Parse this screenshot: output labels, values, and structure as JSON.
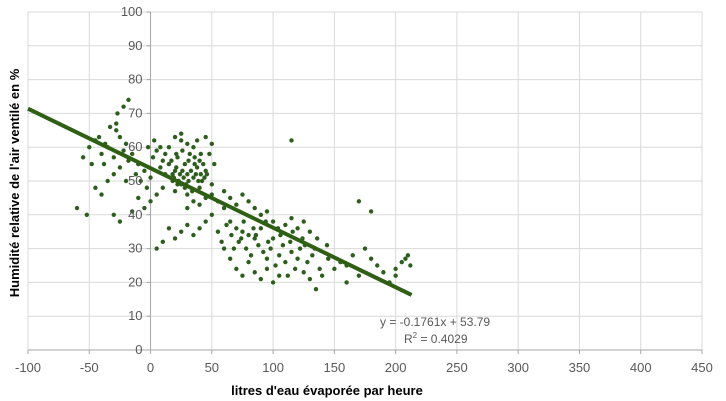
{
  "chart_data": {
    "type": "scatter",
    "title": "",
    "xlabel": "litres d'eau évaporée par heure",
    "ylabel": "Humidité relative de l'air ventilé en %",
    "xlim": [
      -100,
      450
    ],
    "ylim": [
      0,
      100
    ],
    "xticks": [
      -100,
      -50,
      0,
      50,
      100,
      150,
      200,
      250,
      300,
      350,
      400,
      450
    ],
    "yticks": [
      0,
      10,
      20,
      30,
      40,
      50,
      60,
      70,
      80,
      90,
      100
    ],
    "grid": true,
    "legend": "none",
    "colors": {
      "points": "#2e5e1e",
      "trendline": "#2f5f14",
      "grid": "#d9d9d9"
    },
    "trendline": {
      "type": "linear",
      "slope": -0.1761,
      "intercept": 53.79,
      "x_range": [
        -100,
        213
      ],
      "equation_text": "y = -0.1761x + 53.79",
      "r2_label": "R",
      "r2_exponent": "2",
      "r2_value_text": " = 0.4029"
    },
    "series": [
      {
        "points": [
          [
            -45,
            62
          ],
          [
            -40,
            58
          ],
          [
            -38,
            55
          ],
          [
            -35,
            60
          ],
          [
            -30,
            57
          ],
          [
            -28,
            65
          ],
          [
            -25,
            63
          ],
          [
            -22,
            59
          ],
          [
            -20,
            61
          ],
          [
            -18,
            56
          ],
          [
            -15,
            58
          ],
          [
            -12,
            52
          ],
          [
            -10,
            55
          ],
          [
            -8,
            50
          ],
          [
            -5,
            53
          ],
          [
            -3,
            48
          ],
          [
            0,
            51
          ],
          [
            2,
            57
          ],
          [
            5,
            59
          ],
          [
            8,
            54
          ],
          [
            10,
            56
          ],
          [
            12,
            52
          ],
          [
            15,
            55
          ],
          [
            18,
            50
          ],
          [
            20,
            53
          ],
          [
            22,
            57
          ],
          [
            25,
            49
          ],
          [
            28,
            55
          ],
          [
            30,
            52
          ],
          [
            32,
            58
          ],
          [
            35,
            51
          ],
          [
            38,
            54
          ],
          [
            40,
            56
          ],
          [
            42,
            50
          ],
          [
            45,
            53
          ],
          [
            48,
            58
          ],
          [
            50,
            49
          ],
          [
            52,
            55
          ],
          [
            15,
            60
          ],
          [
            20,
            47
          ],
          [
            25,
            62
          ],
          [
            30,
            46
          ],
          [
            35,
            60
          ],
          [
            40,
            48
          ],
          [
            10,
            48
          ],
          [
            5,
            46
          ],
          [
            0,
            44
          ],
          [
            -5,
            42
          ],
          [
            -10,
            45
          ],
          [
            -20,
            50
          ],
          [
            -25,
            54
          ],
          [
            -30,
            52
          ],
          [
            -35,
            50
          ],
          [
            -40,
            46
          ],
          [
            -45,
            48
          ],
          [
            -48,
            55
          ],
          [
            -50,
            60
          ],
          [
            -55,
            57
          ],
          [
            -42,
            63
          ],
          [
            -33,
            66
          ],
          [
            -27,
            70
          ],
          [
            -22,
            72
          ],
          [
            -18,
            74
          ],
          [
            -28,
            67
          ],
          [
            -37,
            61
          ],
          [
            -60,
            42
          ],
          [
            -52,
            40
          ],
          [
            -30,
            40
          ],
          [
            -25,
            38
          ],
          [
            -15,
            41
          ],
          [
            60,
            42
          ],
          [
            65,
            38
          ],
          [
            70,
            36
          ],
          [
            72,
            32
          ],
          [
            75,
            35
          ],
          [
            78,
            30
          ],
          [
            80,
            34
          ],
          [
            82,
            28
          ],
          [
            85,
            33
          ],
          [
            88,
            31
          ],
          [
            90,
            36
          ],
          [
            92,
            29
          ],
          [
            95,
            27
          ],
          [
            98,
            30
          ],
          [
            100,
            33
          ],
          [
            102,
            25
          ],
          [
            105,
            28
          ],
          [
            108,
            31
          ],
          [
            110,
            26
          ],
          [
            112,
            22
          ],
          [
            115,
            29
          ],
          [
            118,
            24
          ],
          [
            120,
            27
          ],
          [
            122,
            30
          ],
          [
            125,
            23
          ],
          [
            128,
            26
          ],
          [
            130,
            21
          ],
          [
            132,
            28
          ],
          [
            135,
            18
          ],
          [
            138,
            24
          ],
          [
            140,
            22
          ],
          [
            145,
            27
          ],
          [
            150,
            24
          ],
          [
            155,
            26
          ],
          [
            160,
            25
          ],
          [
            165,
            28
          ],
          [
            170,
            22
          ],
          [
            175,
            30
          ],
          [
            180,
            27
          ],
          [
            185,
            25
          ],
          [
            190,
            23
          ],
          [
            195,
            20
          ],
          [
            200,
            22
          ],
          [
            205,
            26
          ],
          [
            208,
            27
          ],
          [
            212,
            25
          ],
          [
            210,
            28
          ],
          [
            200,
            24
          ],
          [
            55,
            35
          ],
          [
            58,
            32
          ],
          [
            62,
            37
          ],
          [
            66,
            34
          ],
          [
            68,
            30
          ],
          [
            74,
            33
          ],
          [
            76,
            38
          ],
          [
            84,
            36
          ],
          [
            86,
            34
          ],
          [
            94,
            38
          ],
          [
            96,
            32
          ],
          [
            104,
            36
          ],
          [
            106,
            34
          ],
          [
            114,
            32
          ],
          [
            116,
            35
          ],
          [
            124,
            33
          ],
          [
            126,
            31
          ],
          [
            134,
            30
          ],
          [
            136,
            33
          ],
          [
            144,
            31
          ],
          [
            50,
            40
          ],
          [
            45,
            38
          ],
          [
            40,
            36
          ],
          [
            35,
            34
          ],
          [
            30,
            37
          ],
          [
            25,
            35
          ],
          [
            20,
            33
          ],
          [
            15,
            36
          ],
          [
            10,
            32
          ],
          [
            5,
            30
          ],
          [
            60,
            30
          ],
          [
            65,
            27
          ],
          [
            70,
            24
          ],
          [
            75,
            22
          ],
          [
            80,
            26
          ],
          [
            85,
            23
          ],
          [
            90,
            21
          ],
          [
            95,
            24
          ],
          [
            100,
            20
          ],
          [
            105,
            22
          ],
          [
            30,
            42
          ],
          [
            35,
            44
          ],
          [
            40,
            43
          ],
          [
            45,
            45
          ],
          [
            50,
            46
          ],
          [
            55,
            44
          ],
          [
            60,
            47
          ],
          [
            65,
            45
          ],
          [
            70,
            43
          ],
          [
            75,
            46
          ],
          [
            80,
            44
          ],
          [
            85,
            42
          ],
          [
            90,
            40
          ],
          [
            95,
            41
          ],
          [
            100,
            38
          ],
          [
            110,
            37
          ],
          [
            115,
            39
          ],
          [
            120,
            36
          ],
          [
            125,
            38
          ],
          [
            130,
            35
          ],
          [
            18,
            52
          ],
          [
            19,
            51
          ],
          [
            21,
            54
          ],
          [
            23,
            50
          ],
          [
            24,
            52
          ],
          [
            26,
            53
          ],
          [
            27,
            51
          ],
          [
            29,
            49
          ],
          [
            31,
            50
          ],
          [
            33,
            53
          ],
          [
            36,
            55
          ],
          [
            37,
            52
          ],
          [
            39,
            50
          ],
          [
            41,
            52
          ],
          [
            43,
            55
          ],
          [
            44,
            51
          ],
          [
            46,
            52
          ],
          [
            22,
            49
          ],
          [
            28,
            48
          ],
          [
            34,
            47
          ],
          [
            17,
            56
          ],
          [
            21,
            58
          ],
          [
            26,
            59
          ],
          [
            31,
            56
          ],
          [
            36,
            57
          ],
          [
            41,
            58
          ],
          [
            12,
            58
          ],
          [
            8,
            60
          ],
          [
            3,
            62
          ],
          [
            -2,
            60
          ],
          [
            20,
            63
          ],
          [
            25,
            64
          ],
          [
            30,
            61
          ],
          [
            38,
            62
          ],
          [
            45,
            63
          ],
          [
            50,
            61
          ],
          [
            115,
            62
          ],
          [
            170,
            44
          ],
          [
            180,
            41
          ],
          [
            160,
            20
          ]
        ]
      }
    ]
  }
}
